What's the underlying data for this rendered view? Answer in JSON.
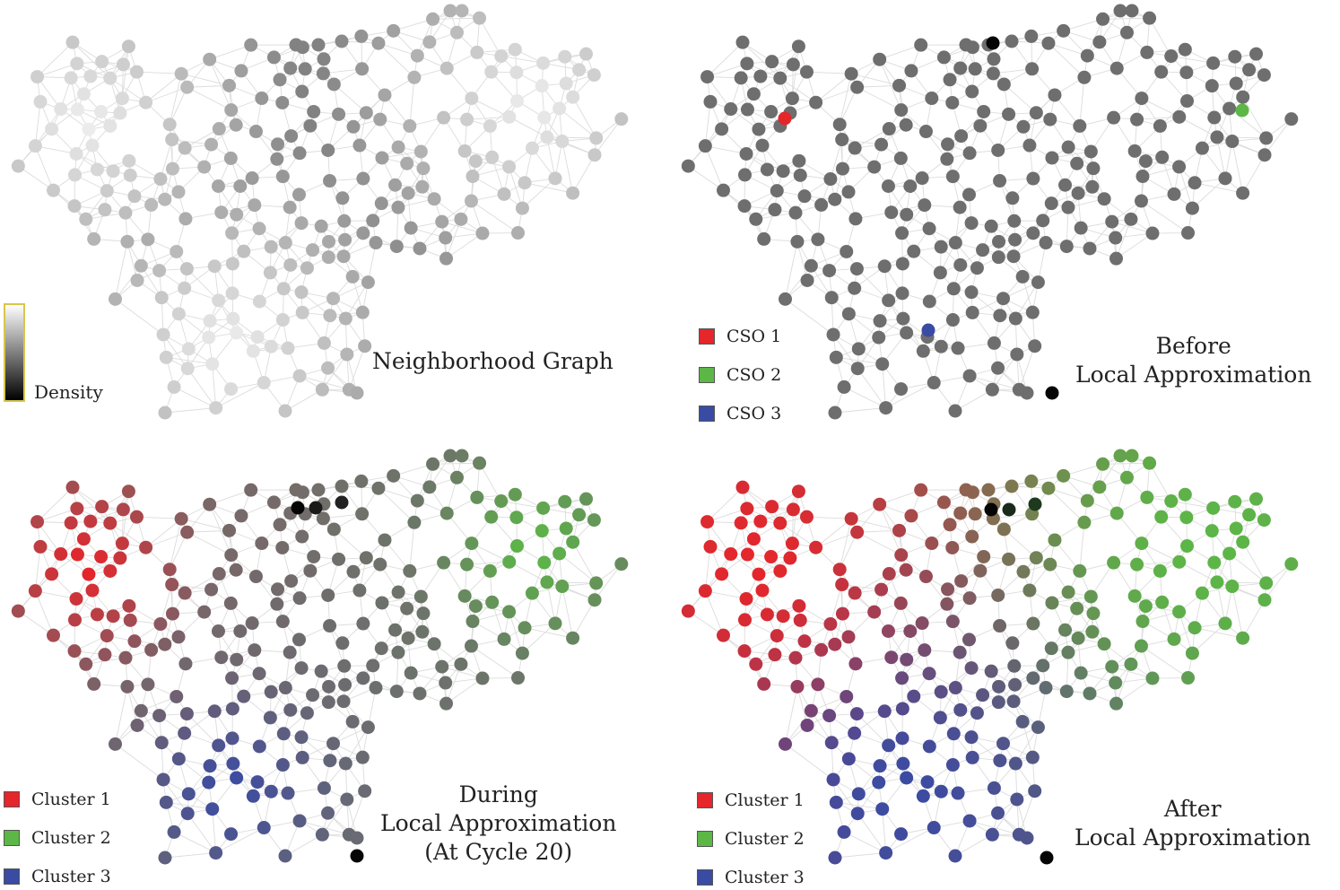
{
  "panels": [
    {
      "id": "neighborhood",
      "caption": [
        "Neighborhood Graph"
      ],
      "colorbar_label": "Density"
    },
    {
      "id": "before",
      "caption": [
        "Before",
        "Local Approximation"
      ],
      "legend": [
        {
          "label": "CSO 1",
          "color": "#e5262b"
        },
        {
          "label": "CSO 2",
          "color": "#5cb747"
        },
        {
          "label": "CSO 3",
          "color": "#3a4ba3"
        }
      ]
    },
    {
      "id": "during",
      "caption": [
        "During",
        "Local Approximation",
        "(At Cycle 20)"
      ],
      "legend": [
        {
          "label": "Cluster 1",
          "color": "#e5262b"
        },
        {
          "label": "Cluster 2",
          "color": "#5cb747"
        },
        {
          "label": "Cluster 3",
          "color": "#3a4ba3"
        }
      ]
    },
    {
      "id": "after",
      "caption": [
        "After",
        "Local Approximation"
      ],
      "legend": [
        {
          "label": "Cluster 1",
          "color": "#e5262b"
        },
        {
          "label": "Cluster 2",
          "color": "#5cb747"
        },
        {
          "label": "Cluster 3",
          "color": "#3a4ba3"
        }
      ]
    }
  ],
  "colors": {
    "cluster1": "#e5262b",
    "cluster2": "#5cb747",
    "cluster3": "#3a4ba3",
    "node_gray": "#6b6b6b",
    "node_light": "#cfcfcf",
    "edge": "#dcdcdc",
    "outlier": "#050505"
  }
}
